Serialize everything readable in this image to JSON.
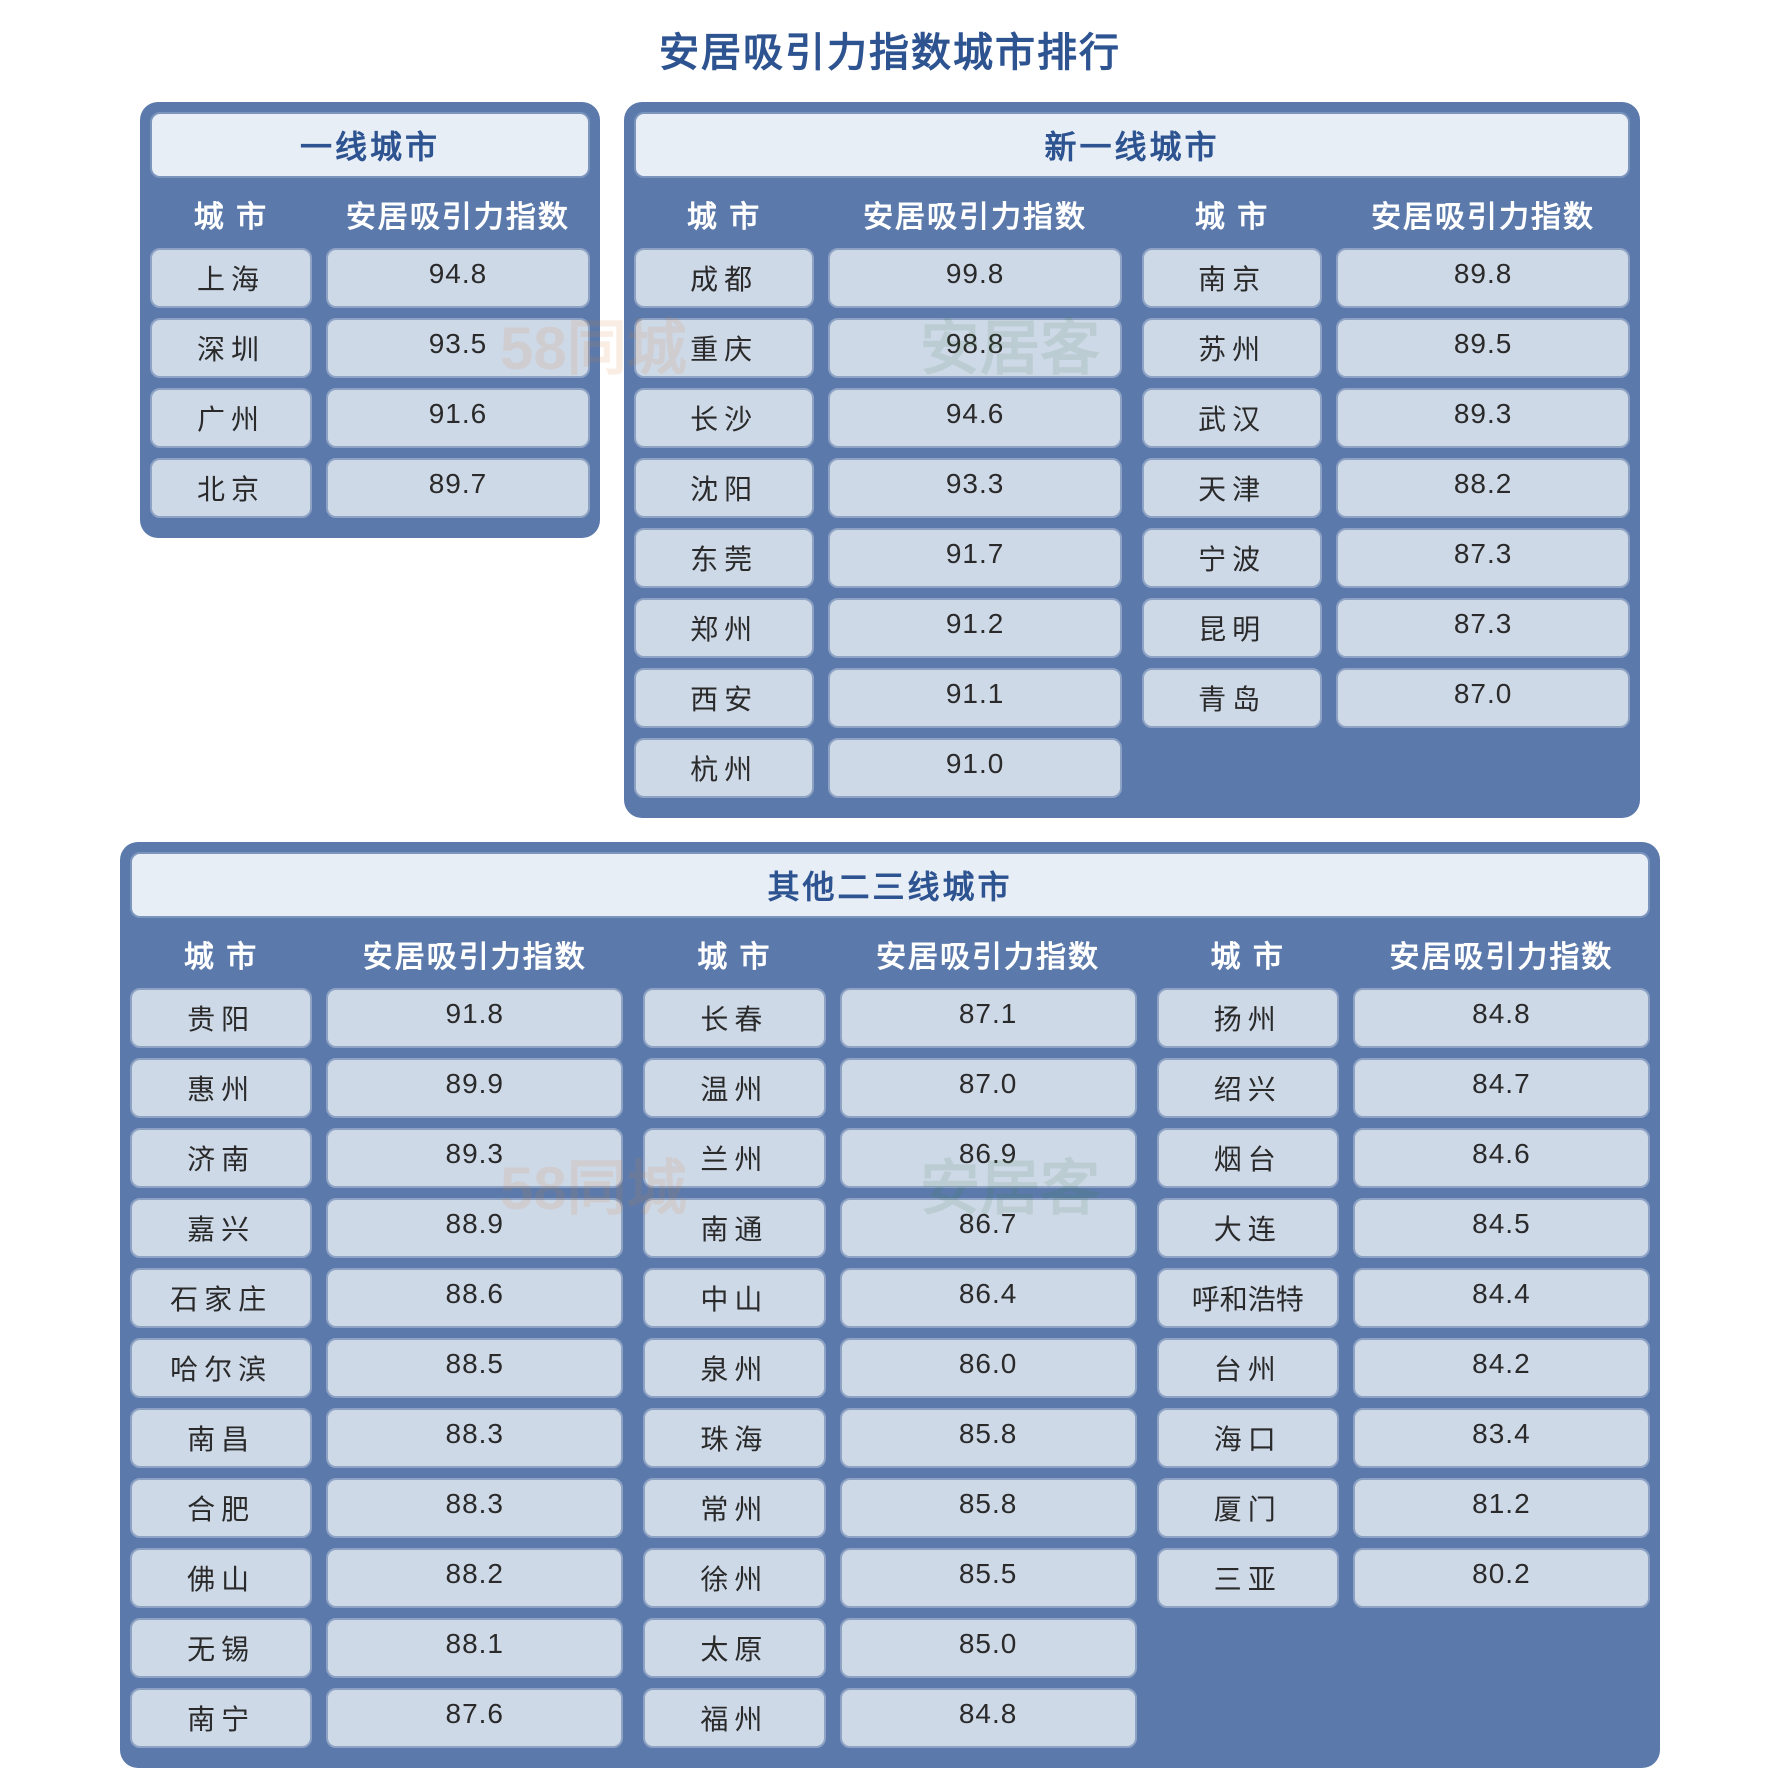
{
  "title": "安居吸引力指数城市排行",
  "colors": {
    "panel_bg": "#5b7aab",
    "title_bar_bg": "#e8eef6",
    "title_bar_border": "#7b95bd",
    "title_text": "#2d5390",
    "header_text": "#ffffff",
    "cell_bg": "#ced9e8",
    "cell_border": "#8ea3c4",
    "cell_text": "#2a2a2a",
    "page_bg": "#ffffff"
  },
  "typography": {
    "title_fontsize": 40,
    "panel_title_fontsize": 32,
    "header_fontsize": 30,
    "cell_fontsize": 28,
    "font_family": "Microsoft YaHei"
  },
  "headers": {
    "city": "城 市",
    "index": "安居吸引力指数"
  },
  "panels": {
    "tier1": {
      "title": "一线城市",
      "columns": [
        [
          {
            "city": "上海",
            "index": "94.8"
          },
          {
            "city": "深圳",
            "index": "93.5"
          },
          {
            "city": "广州",
            "index": "91.6"
          },
          {
            "city": "北京",
            "index": "89.7"
          }
        ]
      ]
    },
    "newtier1": {
      "title": "新一线城市",
      "columns": [
        [
          {
            "city": "成都",
            "index": "99.8"
          },
          {
            "city": "重庆",
            "index": "98.8"
          },
          {
            "city": "长沙",
            "index": "94.6"
          },
          {
            "city": "沈阳",
            "index": "93.3"
          },
          {
            "city": "东莞",
            "index": "91.7"
          },
          {
            "city": "郑州",
            "index": "91.2"
          },
          {
            "city": "西安",
            "index": "91.1"
          },
          {
            "city": "杭州",
            "index": "91.0"
          }
        ],
        [
          {
            "city": "南京",
            "index": "89.8"
          },
          {
            "city": "苏州",
            "index": "89.5"
          },
          {
            "city": "武汉",
            "index": "89.3"
          },
          {
            "city": "天津",
            "index": "88.2"
          },
          {
            "city": "宁波",
            "index": "87.3"
          },
          {
            "city": "昆明",
            "index": "87.3"
          },
          {
            "city": "青岛",
            "index": "87.0"
          }
        ]
      ]
    },
    "tier23": {
      "title": "其他二三线城市",
      "columns": [
        [
          {
            "city": "贵阳",
            "index": "91.8"
          },
          {
            "city": "惠州",
            "index": "89.9"
          },
          {
            "city": "济南",
            "index": "89.3"
          },
          {
            "city": "嘉兴",
            "index": "88.9"
          },
          {
            "city": "石家庄",
            "index": "88.6"
          },
          {
            "city": "哈尔滨",
            "index": "88.5"
          },
          {
            "city": "南昌",
            "index": "88.3"
          },
          {
            "city": "合肥",
            "index": "88.3"
          },
          {
            "city": "佛山",
            "index": "88.2"
          },
          {
            "city": "无锡",
            "index": "88.1"
          },
          {
            "city": "南宁",
            "index": "87.6"
          }
        ],
        [
          {
            "city": "长春",
            "index": "87.1"
          },
          {
            "city": "温州",
            "index": "87.0"
          },
          {
            "city": "兰州",
            "index": "86.9"
          },
          {
            "city": "南通",
            "index": "86.7"
          },
          {
            "city": "中山",
            "index": "86.4"
          },
          {
            "city": "泉州",
            "index": "86.0"
          },
          {
            "city": "珠海",
            "index": "85.8"
          },
          {
            "city": "常州",
            "index": "85.8"
          },
          {
            "city": "徐州",
            "index": "85.5"
          },
          {
            "city": "太原",
            "index": "85.0"
          },
          {
            "city": "福州",
            "index": "84.8"
          }
        ],
        [
          {
            "city": "扬州",
            "index": "84.8"
          },
          {
            "city": "绍兴",
            "index": "84.7"
          },
          {
            "city": "烟台",
            "index": "84.6"
          },
          {
            "city": "大连",
            "index": "84.5"
          },
          {
            "city": "呼和浩特",
            "index": "84.4"
          },
          {
            "city": "台州",
            "index": "84.2"
          },
          {
            "city": "海口",
            "index": "83.4"
          },
          {
            "city": "厦门",
            "index": "81.2"
          },
          {
            "city": "三亚",
            "index": "80.2"
          }
        ]
      ]
    }
  },
  "watermarks": [
    {
      "text": "58同城",
      "cls": "wm1"
    },
    {
      "text": "安居客",
      "cls": "wm2"
    }
  ]
}
